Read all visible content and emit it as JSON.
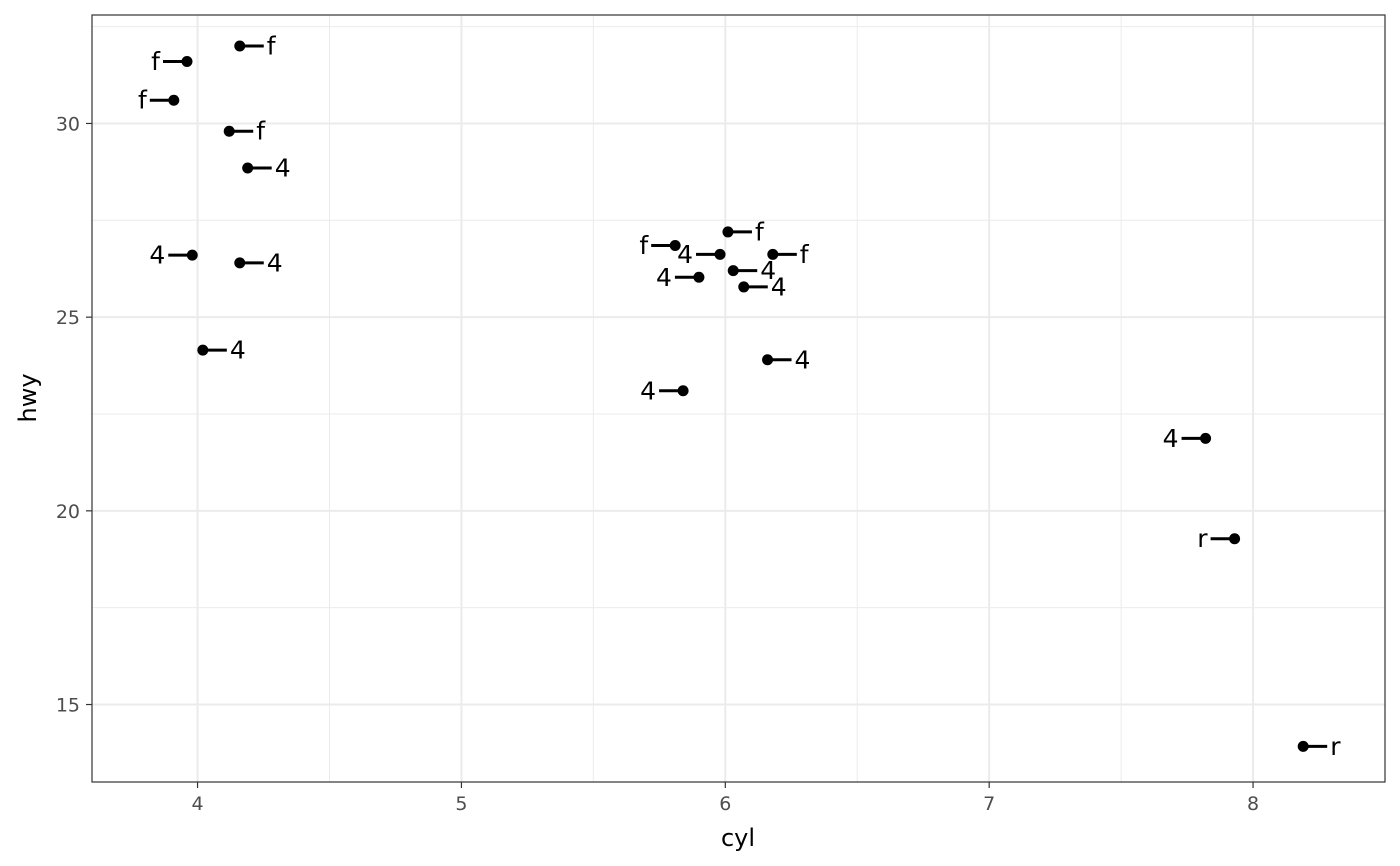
{
  "chart_data": {
    "type": "scatter",
    "title": "",
    "xlabel": "cyl",
    "ylabel": "hwy",
    "xlim": [
      3.6,
      8.5
    ],
    "ylim": [
      13,
      32.8
    ],
    "x_ticks": [
      4,
      5,
      6,
      7,
      8
    ],
    "y_ticks": [
      15,
      20,
      25,
      30
    ],
    "x_minor": [
      4.5,
      5.5,
      6.5,
      7.5
    ],
    "y_minor": [
      17.5,
      22.5,
      27.5,
      32.5
    ],
    "grid": true,
    "legend": "none",
    "points": [
      {
        "x": 4.16,
        "y": 32.0,
        "label": "f",
        "side": "right"
      },
      {
        "x": 3.96,
        "y": 31.6,
        "label": "f",
        "side": "left"
      },
      {
        "x": 3.91,
        "y": 30.6,
        "label": "f",
        "side": "left"
      },
      {
        "x": 4.12,
        "y": 29.8,
        "label": "f",
        "side": "right"
      },
      {
        "x": 4.19,
        "y": 28.85,
        "label": "4",
        "side": "right"
      },
      {
        "x": 3.98,
        "y": 26.6,
        "label": "4",
        "side": "left"
      },
      {
        "x": 4.16,
        "y": 26.4,
        "label": "4",
        "side": "right"
      },
      {
        "x": 4.02,
        "y": 24.15,
        "label": "4",
        "side": "right"
      },
      {
        "x": 6.01,
        "y": 27.2,
        "label": "f",
        "side": "right"
      },
      {
        "x": 5.81,
        "y": 26.85,
        "label": "f",
        "side": "left"
      },
      {
        "x": 5.98,
        "y": 26.62,
        "label": "4",
        "side": "left"
      },
      {
        "x": 6.18,
        "y": 26.62,
        "label": "f",
        "side": "right"
      },
      {
        "x": 6.03,
        "y": 26.2,
        "label": "4",
        "side": "right"
      },
      {
        "x": 5.9,
        "y": 26.03,
        "label": "4",
        "side": "left"
      },
      {
        "x": 6.07,
        "y": 25.78,
        "label": "4",
        "side": "right"
      },
      {
        "x": 6.16,
        "y": 23.9,
        "label": "4",
        "side": "right"
      },
      {
        "x": 5.84,
        "y": 23.1,
        "label": "4",
        "side": "left"
      },
      {
        "x": 7.82,
        "y": 21.87,
        "label": "4",
        "side": "left"
      },
      {
        "x": 7.93,
        "y": 19.28,
        "label": "r",
        "side": "left"
      },
      {
        "x": 8.19,
        "y": 13.92,
        "label": "r",
        "side": "right"
      }
    ]
  }
}
